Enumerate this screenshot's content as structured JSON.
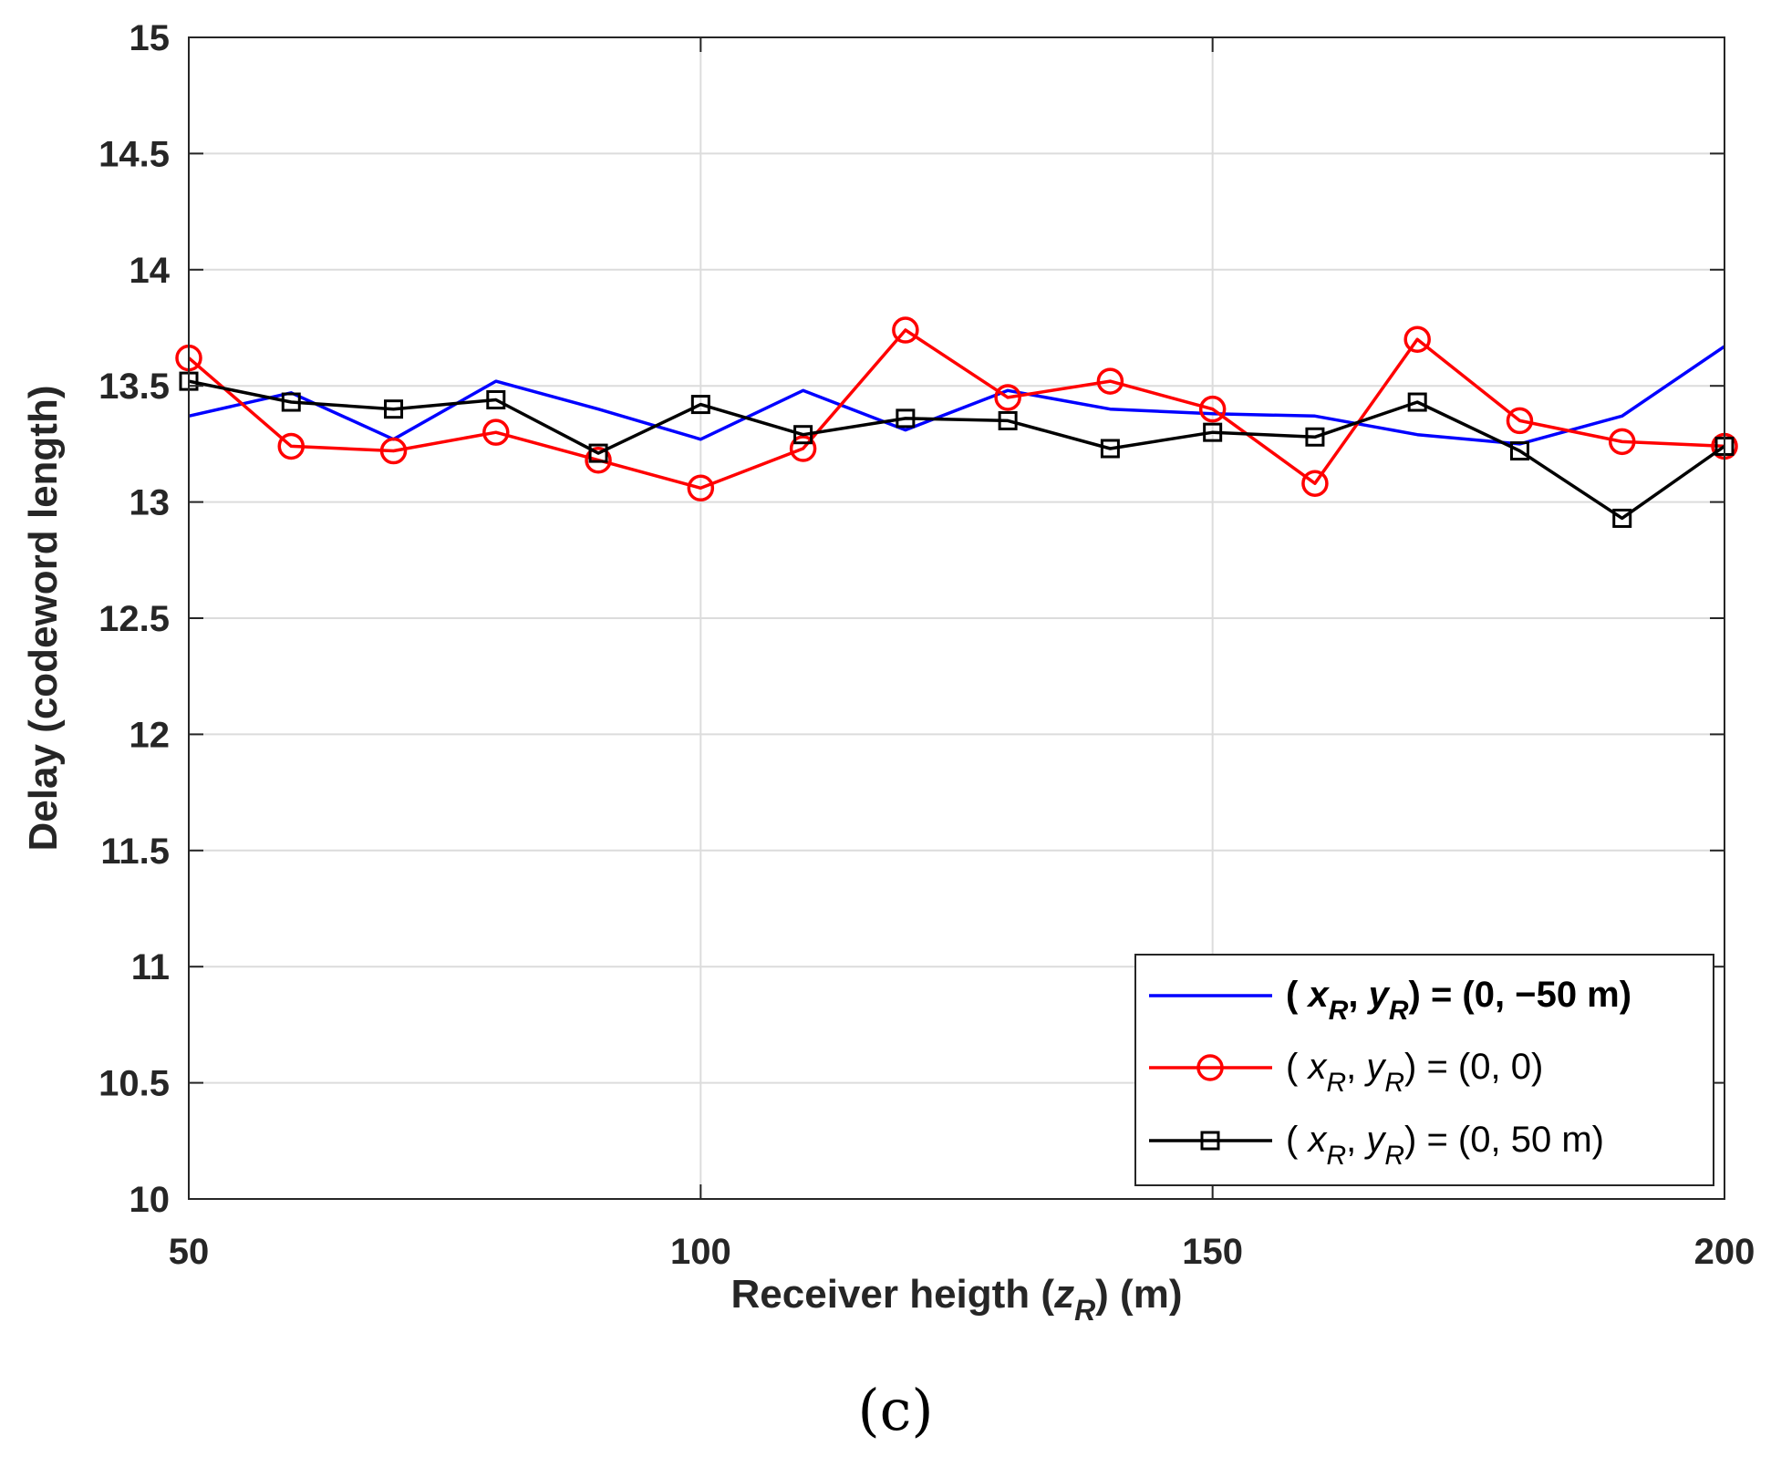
{
  "chart_data": {
    "type": "line",
    "xlabel": {
      "prefix": "Receiver heigth (",
      "var": "z",
      "sub": "R",
      "suffix": ") (m)"
    },
    "ylabel": "Delay (codeword length)",
    "xlim": [
      50,
      200
    ],
    "ylim": [
      10,
      15
    ],
    "xticks": [
      50,
      100,
      150,
      200
    ],
    "yticks": [
      10,
      10.5,
      11,
      11.5,
      12,
      12.5,
      13,
      13.5,
      14,
      14.5,
      15
    ],
    "x_grid": true,
    "y_grid": true,
    "x": [
      50,
      60,
      70,
      80,
      90,
      100,
      110,
      120,
      130,
      140,
      150,
      160,
      170,
      180,
      190,
      200
    ],
    "series": [
      {
        "name": "( x_R, y_R) = (0, −50 m)",
        "label": {
          "open": "( ",
          "v1": "x",
          "s1": "R",
          "mid": ", ",
          "v2": "y",
          "s2": "R",
          "rest": ") = (0, −50 m)",
          "bold": true
        },
        "color": "#0000ff",
        "marker": "none",
        "values": [
          13.37,
          13.47,
          13.27,
          13.52,
          13.4,
          13.27,
          13.48,
          13.31,
          13.48,
          13.4,
          13.38,
          13.37,
          13.29,
          13.25,
          13.37,
          13.67
        ]
      },
      {
        "name": "( x_R, y_R) = (0, 0)",
        "label": {
          "open": "( ",
          "v1": "x",
          "s1": "R",
          "mid": ", ",
          "v2": "y",
          "s2": "R",
          "rest": ") = (0, 0)",
          "bold": false
        },
        "color": "#ff0000",
        "marker": "circle",
        "values": [
          13.62,
          13.24,
          13.22,
          13.3,
          13.18,
          13.06,
          13.23,
          13.74,
          13.45,
          13.52,
          13.4,
          13.08,
          13.7,
          13.35,
          13.26,
          13.24
        ]
      },
      {
        "name": "( x_R, y_R) = (0, 50 m)",
        "label": {
          "open": "( ",
          "v1": "x",
          "s1": "R",
          "mid": ", ",
          "v2": "y",
          "s2": "R",
          "rest": ") = (0, 50 m)",
          "bold": false
        },
        "color": "#000000",
        "marker": "square",
        "values": [
          13.52,
          13.43,
          13.4,
          13.44,
          13.21,
          13.42,
          13.29,
          13.36,
          13.35,
          13.23,
          13.3,
          13.28,
          13.43,
          13.22,
          12.93,
          13.24
        ]
      }
    ],
    "legend_position": "bottom-right",
    "caption": "(c)"
  }
}
